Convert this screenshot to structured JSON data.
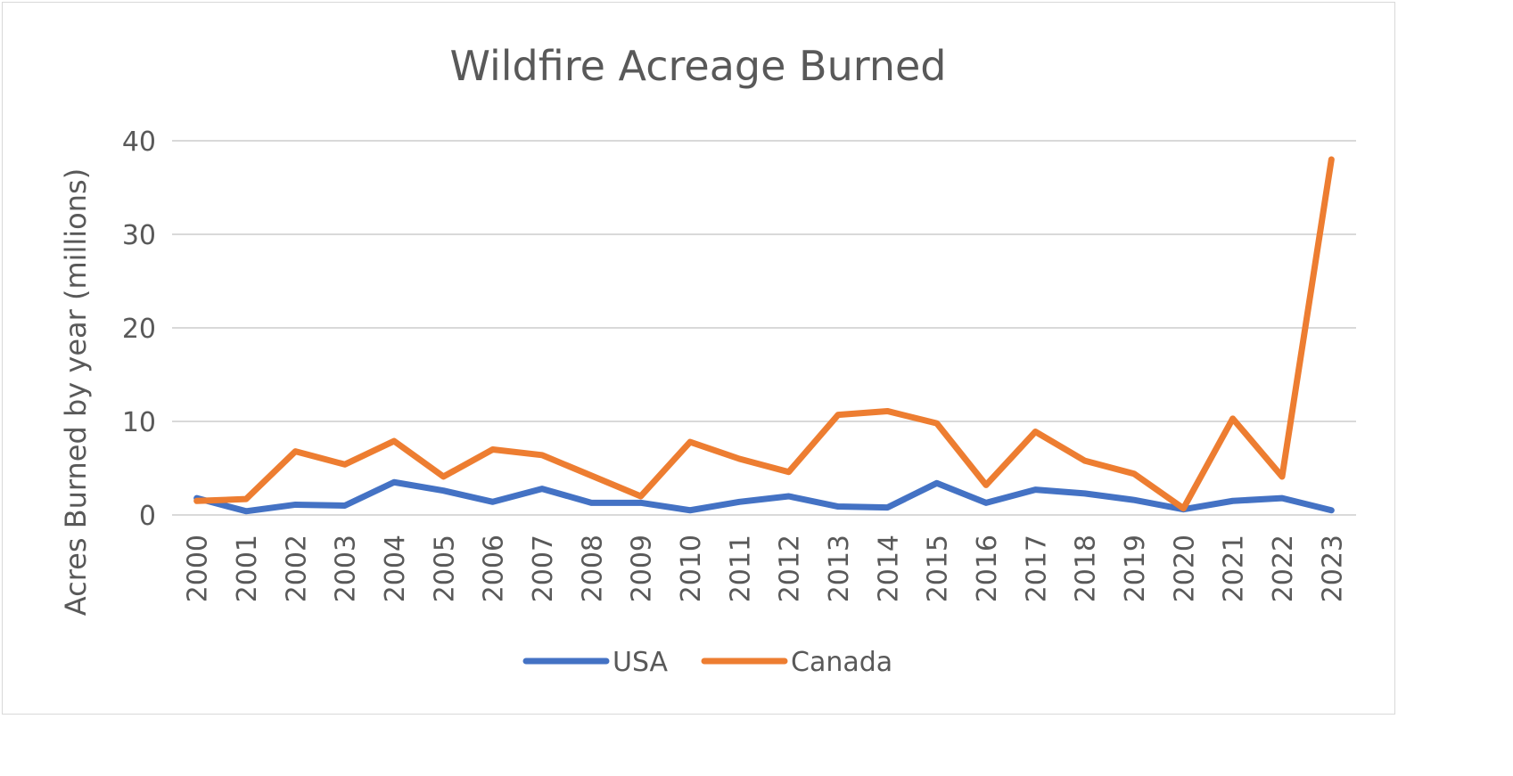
{
  "chart_data": {
    "type": "line",
    "title": "Wildfire Acreage Burned",
    "xlabel": "",
    "ylabel": "Acres Burned by year (millions)",
    "ylim": [
      0,
      40
    ],
    "yticks": [
      "0",
      "10",
      "20",
      "30",
      "40"
    ],
    "grid": true,
    "legend": "bottom",
    "categories": [
      "2000",
      "2001",
      "2002",
      "2003",
      "2004",
      "2005",
      "2006",
      "2007",
      "2008",
      "2009",
      "2010",
      "2011",
      "2012",
      "2013",
      "2014",
      "2015",
      "2016",
      "2017",
      "2018",
      "2019",
      "2020",
      "2021",
      "2022",
      "2023"
    ],
    "series": [
      {
        "name": "USA",
        "color": "#4472c4",
        "values": [
          1.8,
          0.4,
          1.1,
          1.0,
          3.5,
          2.6,
          1.4,
          2.8,
          1.3,
          1.3,
          0.5,
          1.4,
          2.0,
          0.9,
          0.8,
          3.4,
          1.3,
          2.7,
          2.3,
          1.6,
          0.6,
          1.5,
          1.8,
          0.5
        ]
      },
      {
        "name": "Canada",
        "color": "#ed7d31",
        "values": [
          1.5,
          1.7,
          6.8,
          5.4,
          7.9,
          4.1,
          7.0,
          6.4,
          4.2,
          2.0,
          7.8,
          6.0,
          4.6,
          10.7,
          11.1,
          9.8,
          3.2,
          8.9,
          5.8,
          4.4,
          0.7,
          10.3,
          4.1,
          38.0
        ]
      }
    ]
  }
}
